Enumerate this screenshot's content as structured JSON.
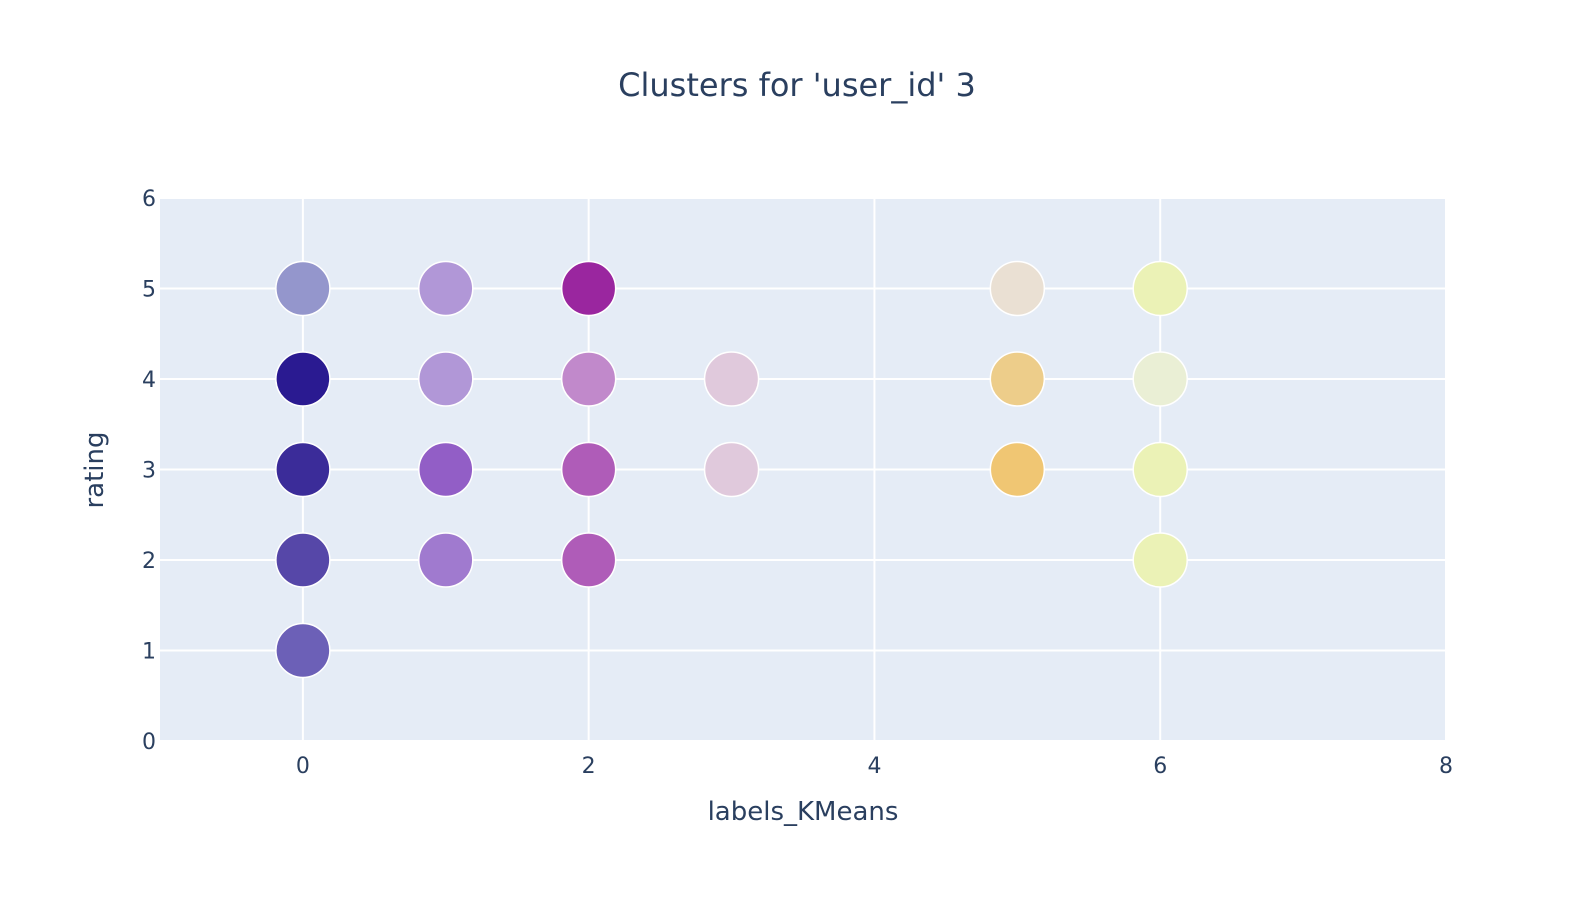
{
  "chart_data": {
    "type": "scatter",
    "title": "Clusters for 'user_id' 3",
    "xlabel": "labels_KMeans",
    "ylabel": "rating",
    "xlim": [
      -1,
      8
    ],
    "ylim": [
      0,
      6
    ],
    "x_ticks": [
      "0",
      "2",
      "4",
      "6",
      "8"
    ],
    "y_ticks": [
      "0",
      "1",
      "2",
      "3",
      "4",
      "5",
      "6"
    ],
    "grid": true,
    "legend": "none",
    "colors": {
      "plot_background": "#E5ECF6",
      "grid": "#ffffff",
      "text": "#2a3f5f"
    },
    "points": [
      {
        "x": 0,
        "y": 5,
        "color": "#9496CC"
      },
      {
        "x": 0,
        "y": 4,
        "color": "#2A1A91"
      },
      {
        "x": 0,
        "y": 3,
        "color": "#3B2C99"
      },
      {
        "x": 0,
        "y": 2,
        "color": "#5647A8"
      },
      {
        "x": 0,
        "y": 1,
        "color": "#6C60B7"
      },
      {
        "x": 1,
        "y": 5,
        "color": "#B197D7"
      },
      {
        "x": 1,
        "y": 4,
        "color": "#B197D7"
      },
      {
        "x": 1,
        "y": 3,
        "color": "#925EC6"
      },
      {
        "x": 1,
        "y": 2,
        "color": "#A07ACF"
      },
      {
        "x": 2,
        "y": 5,
        "color": "#9A269F"
      },
      {
        "x": 2,
        "y": 4,
        "color": "#C189CB"
      },
      {
        "x": 2,
        "y": 3,
        "color": "#AF5CB8"
      },
      {
        "x": 2,
        "y": 2,
        "color": "#AF5CB8"
      },
      {
        "x": 3,
        "y": 4,
        "color": "#E0C9DC"
      },
      {
        "x": 3,
        "y": 3,
        "color": "#E0C9DC"
      },
      {
        "x": 5,
        "y": 5,
        "color": "#EAE0D3"
      },
      {
        "x": 5,
        "y": 4,
        "color": "#EDCD8A"
      },
      {
        "x": 5,
        "y": 3,
        "color": "#F0C673"
      },
      {
        "x": 6,
        "y": 5,
        "color": "#EBF2B6"
      },
      {
        "x": 6,
        "y": 4,
        "color": "#EAEFD5"
      },
      {
        "x": 6,
        "y": 3,
        "color": "#EBF2B6"
      },
      {
        "x": 6,
        "y": 2,
        "color": "#EBF2B6"
      }
    ]
  }
}
